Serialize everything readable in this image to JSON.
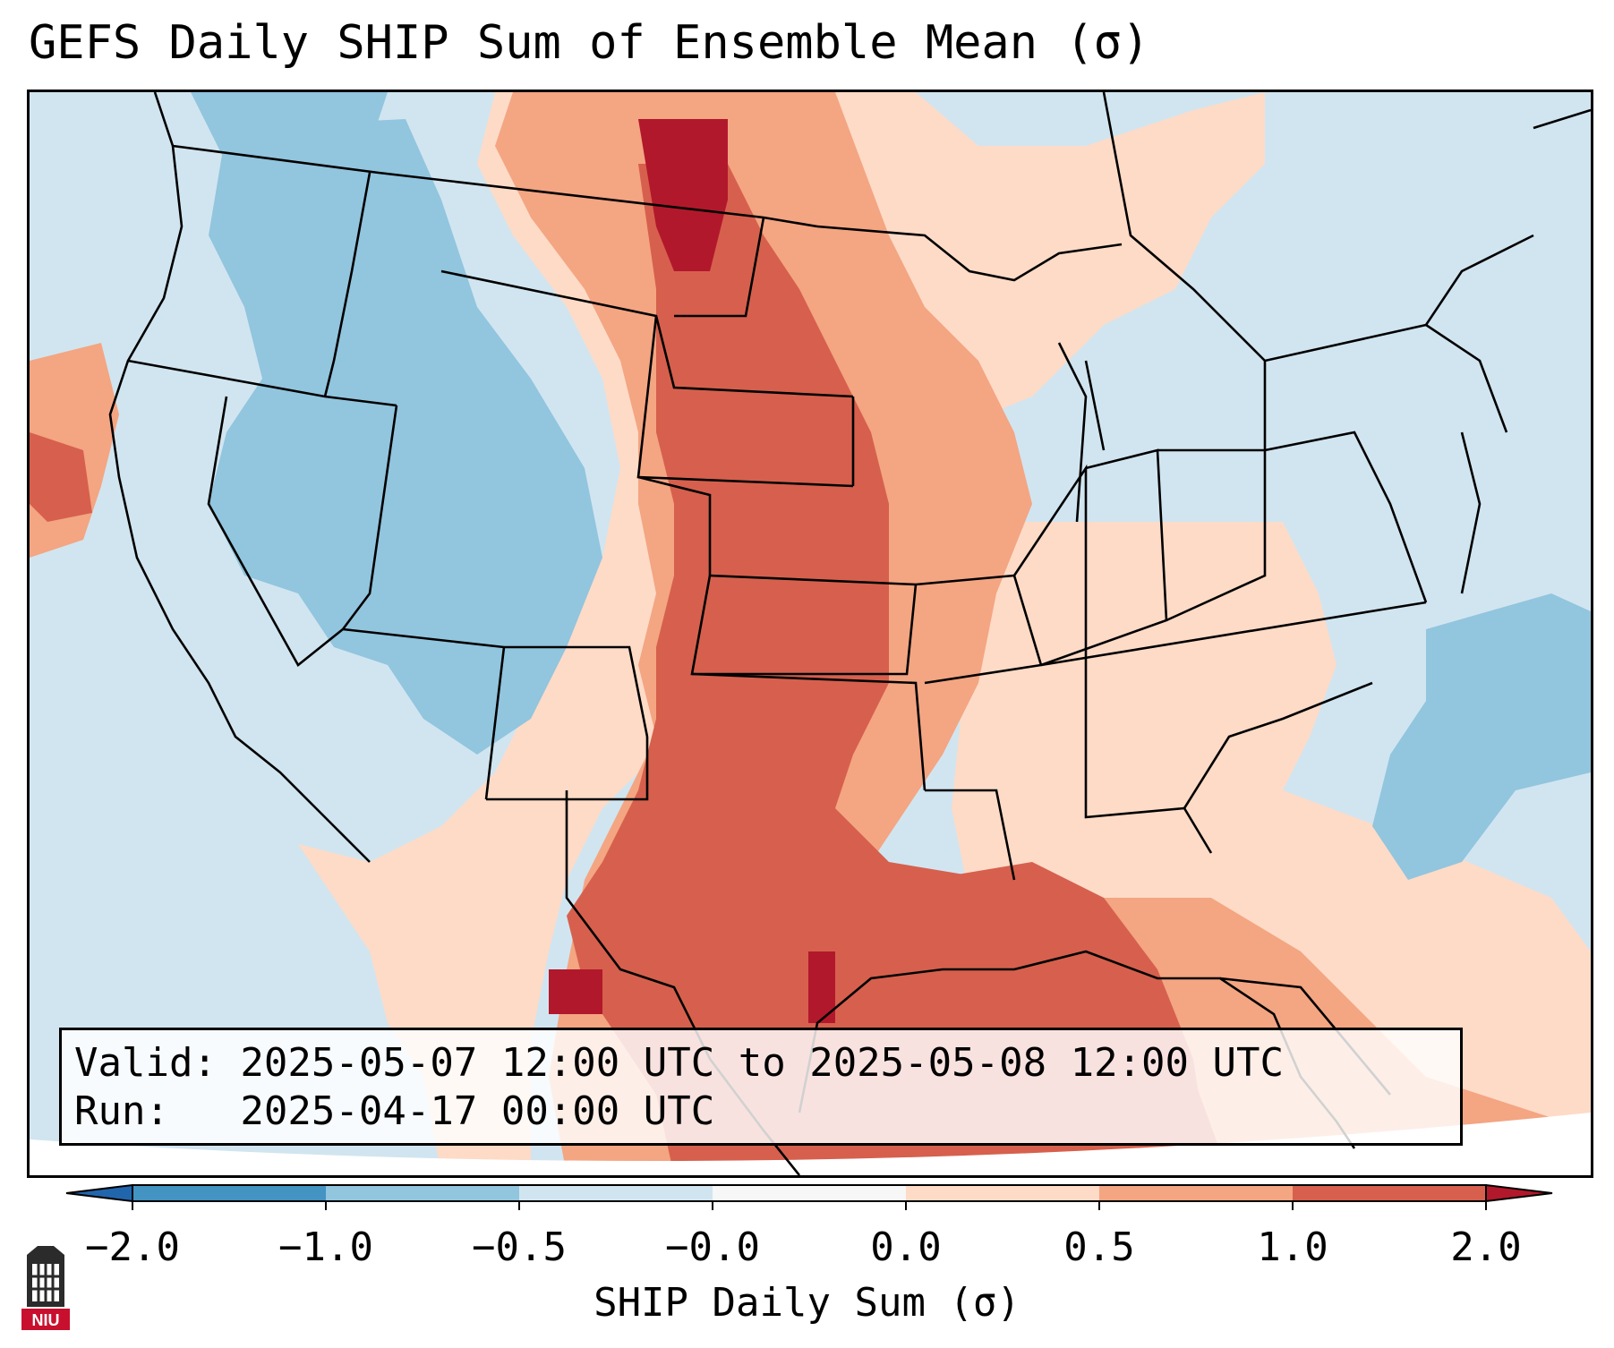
{
  "title": "GEFS Daily SHIP Sum of Ensemble Mean (σ)",
  "info": {
    "valid_line": "Valid: 2025-05-07 12:00 UTC to 2025-05-08 12:00 UTC",
    "run_line": "Run:   2025-04-17 00:00 UTC"
  },
  "colorbar": {
    "label": "SHIP Daily Sum (σ)",
    "ticks": [
      "−2.0",
      "−1.0",
      "−0.5",
      "−0.0",
      "0.0",
      "0.5",
      "1.0",
      "2.0"
    ],
    "bins": [
      {
        "color": "#4393c3"
      },
      {
        "color": "#92c5de"
      },
      {
        "color": "#d1e5f0"
      },
      {
        "color": "#f7f7f7"
      },
      {
        "color": "#fddbc7"
      },
      {
        "color": "#f4a582"
      },
      {
        "color": "#d6604d"
      }
    ],
    "under_color": "#2166ac",
    "over_color": "#b2182b"
  },
  "map": {
    "projection": "Lambert conformal, CONUS",
    "background_color": "#d1e5f0",
    "state_borders": true
  },
  "logo": {
    "text": "NIU",
    "color": "#c8102e"
  }
}
